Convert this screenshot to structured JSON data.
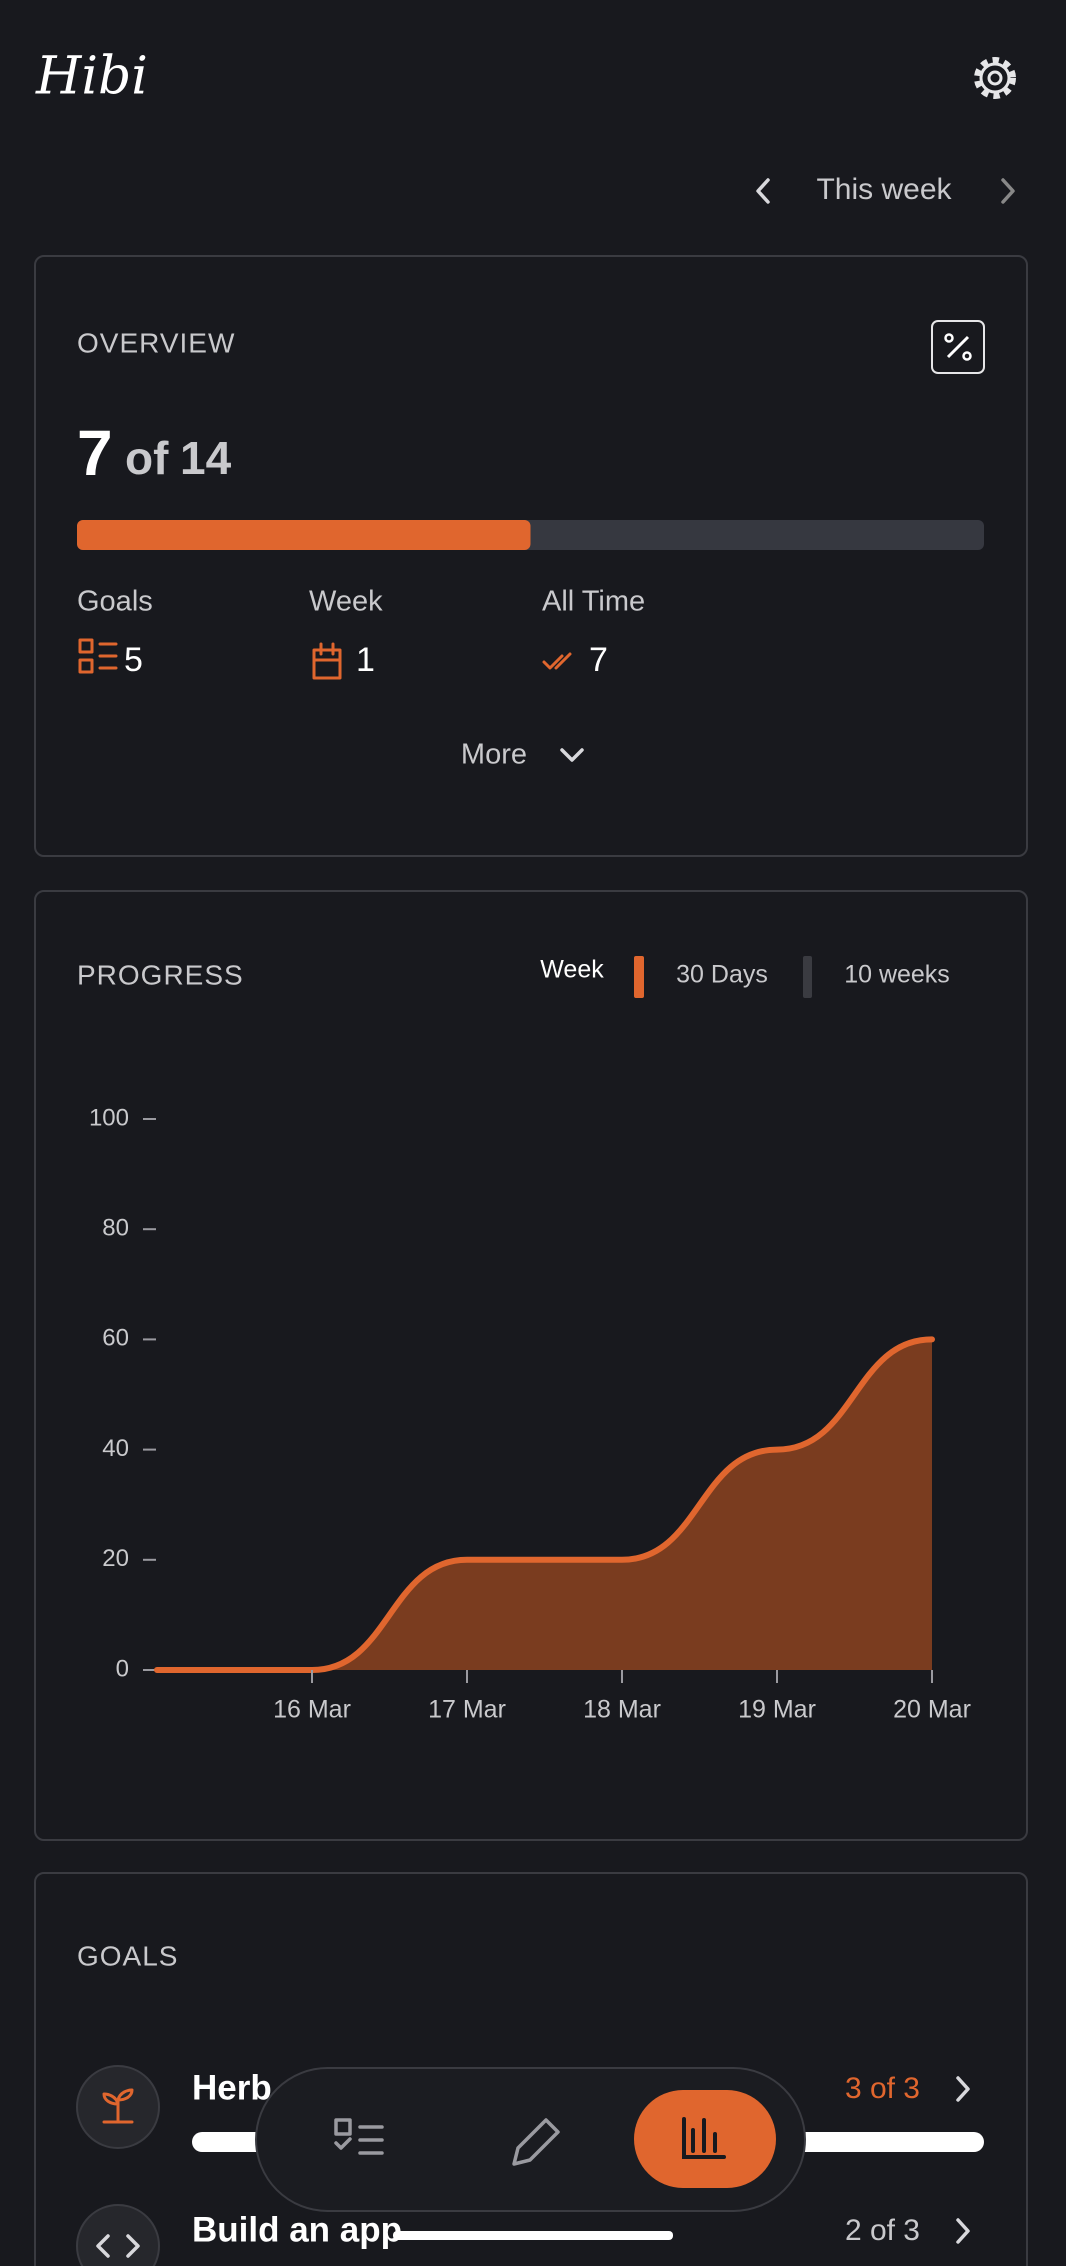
{
  "header": {
    "logo": "Hibi",
    "period": "This week"
  },
  "overview": {
    "title": "OVERVIEW",
    "completed": 7,
    "connector": "of",
    "total": 14,
    "stats": [
      {
        "label": "Goals",
        "value": 5
      },
      {
        "label": "Week",
        "value": 1
      },
      {
        "label": "All Time",
        "value": 7
      }
    ],
    "more": "More"
  },
  "chart_data": {
    "type": "area",
    "title": "PROGRESS",
    "tabs": [
      "Week",
      "30 Days",
      "10 weeks"
    ],
    "categories": [
      null,
      "16 Mar",
      "17 Mar",
      "18 Mar",
      "19 Mar",
      "20 Mar"
    ],
    "values": [
      0,
      0,
      20,
      20,
      40,
      60
    ],
    "color": "#e0662e",
    "fill": "#7a3c1f",
    "ylim": [
      0,
      100
    ],
    "yticks": [
      0,
      20,
      40,
      60,
      80,
      100
    ]
  },
  "goals": {
    "title": "GOALS",
    "items": [
      {
        "name": "Herb",
        "progress": "3 of 3"
      },
      {
        "name": "Build an app",
        "progress": "2 of 3"
      }
    ]
  }
}
